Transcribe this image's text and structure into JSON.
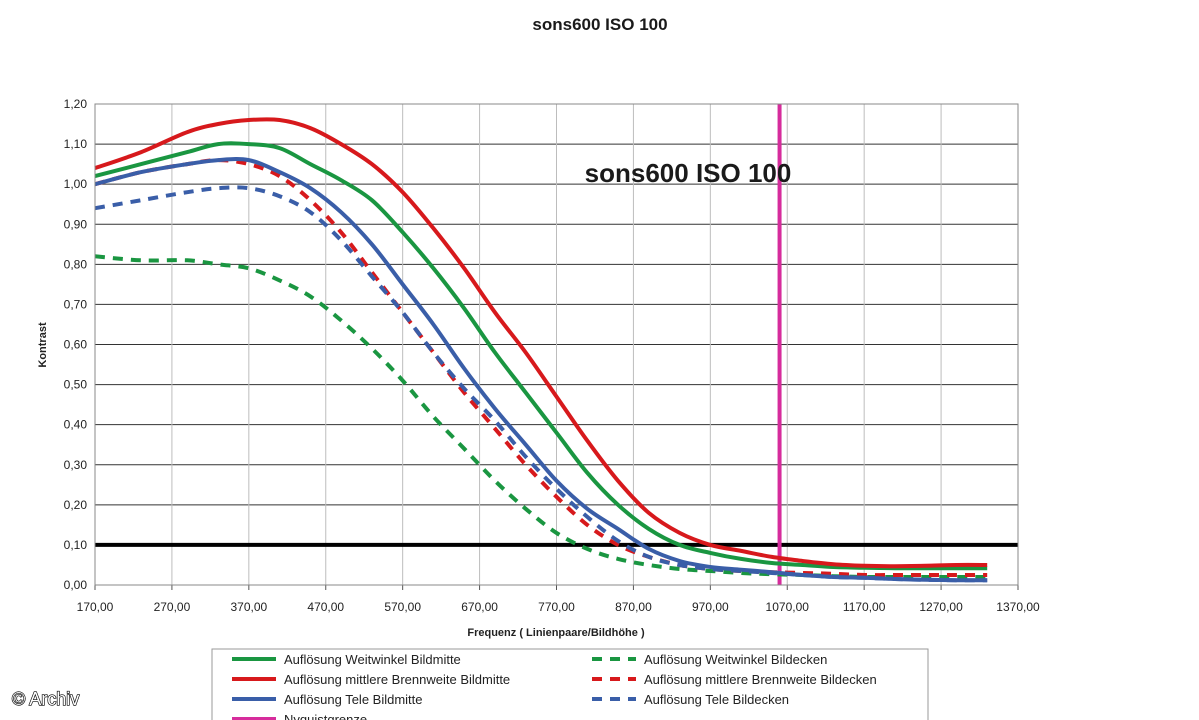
{
  "watermark": "© Archiv",
  "chart_data": {
    "type": "line",
    "title": "sons600   ISO 100",
    "inner_title": "sons600   ISO 100",
    "xlabel": "Frequenz ( Linienpaare/Bildhöhe )",
    "ylabel": "Kontrast",
    "xlim": [
      170,
      1370
    ],
    "ylim": [
      0,
      1.2
    ],
    "x_ticks": [
      "170,00",
      "270,00",
      "370,00",
      "470,00",
      "570,00",
      "670,00",
      "770,00",
      "870,00",
      "970,00",
      "1070,00",
      "1170,00",
      "1270,00",
      "1370,00"
    ],
    "y_ticks": [
      "0,00",
      "0,10",
      "0,20",
      "0,30",
      "0,40",
      "0,50",
      "0,60",
      "0,70",
      "0,80",
      "0,90",
      "1,00",
      "1,10",
      "1,20"
    ],
    "grid": true,
    "legend_position": "bottom",
    "reference_lines": [
      {
        "orientation": "horizontal",
        "y": 0.1,
        "color": "#000000"
      },
      {
        "orientation": "vertical",
        "x": 1060,
        "color": "#d62c9c",
        "name": "Nyquistgrenze"
      }
    ],
    "series": [
      {
        "name": "Auflösung Weitwinkel Bildmitte",
        "color": "#1a9641",
        "dash": false,
        "x": [
          170,
          230,
          290,
          330,
          370,
          410,
          450,
          490,
          530,
          570,
          610,
          650,
          690,
          730,
          770,
          810,
          850,
          890,
          930,
          970,
          1010,
          1050,
          1090,
          1130,
          1170,
          1210,
          1250,
          1290,
          1330
        ],
        "y": [
          1.02,
          1.05,
          1.08,
          1.1,
          1.1,
          1.09,
          1.05,
          1.01,
          0.96,
          0.88,
          0.79,
          0.69,
          0.58,
          0.48,
          0.38,
          0.28,
          0.2,
          0.14,
          0.1,
          0.08,
          0.065,
          0.055,
          0.05,
          0.045,
          0.043,
          0.042,
          0.042,
          0.042,
          0.042
        ]
      },
      {
        "name": "Auflösung mittlere Brennweite Bildmitte",
        "color": "#d7191c",
        "dash": false,
        "x": [
          170,
          230,
          290,
          330,
          370,
          410,
          450,
          490,
          530,
          570,
          610,
          650,
          690,
          730,
          770,
          810,
          850,
          890,
          930,
          970,
          1010,
          1050,
          1090,
          1130,
          1170,
          1210,
          1250,
          1290,
          1330
        ],
        "y": [
          1.04,
          1.08,
          1.13,
          1.15,
          1.16,
          1.16,
          1.14,
          1.1,
          1.05,
          0.98,
          0.89,
          0.79,
          0.68,
          0.58,
          0.47,
          0.36,
          0.26,
          0.18,
          0.13,
          0.1,
          0.085,
          0.07,
          0.06,
          0.052,
          0.048,
          0.047,
          0.048,
          0.05,
          0.05
        ]
      },
      {
        "name": "Auflösung Tele Bildmitte",
        "color": "#3a5ea8",
        "dash": false,
        "x": [
          170,
          230,
          290,
          330,
          370,
          410,
          450,
          490,
          530,
          570,
          610,
          650,
          690,
          730,
          770,
          810,
          850,
          890,
          930,
          970,
          1010,
          1050,
          1090,
          1130,
          1170,
          1210,
          1250,
          1290,
          1330
        ],
        "y": [
          1.0,
          1.03,
          1.05,
          1.06,
          1.06,
          1.03,
          0.99,
          0.93,
          0.85,
          0.75,
          0.65,
          0.54,
          0.44,
          0.35,
          0.26,
          0.19,
          0.14,
          0.09,
          0.06,
          0.045,
          0.038,
          0.032,
          0.025,
          0.02,
          0.018,
          0.015,
          0.013,
          0.012,
          0.012
        ]
      },
      {
        "name": "Auflösung Weitwinkel Bildecken",
        "color": "#1a9641",
        "dash": true,
        "x": [
          170,
          230,
          290,
          330,
          370,
          410,
          450,
          490,
          530,
          570,
          610,
          650,
          690,
          730,
          770,
          810,
          850,
          890,
          930,
          970,
          1010,
          1050,
          1090,
          1130,
          1170,
          1210,
          1250,
          1290,
          1330
        ],
        "y": [
          0.82,
          0.81,
          0.81,
          0.8,
          0.79,
          0.76,
          0.72,
          0.66,
          0.59,
          0.51,
          0.42,
          0.34,
          0.26,
          0.19,
          0.13,
          0.09,
          0.065,
          0.05,
          0.04,
          0.035,
          0.03,
          0.027,
          0.025,
          0.022,
          0.02,
          0.02,
          0.02,
          0.02,
          0.02
        ]
      },
      {
        "name": "Auflösung mittlere Brennweite Bildecken",
        "color": "#d7191c",
        "dash": true,
        "x": [
          170,
          230,
          290,
          330,
          370,
          410,
          450,
          490,
          530,
          570,
          610,
          650,
          690,
          730,
          770,
          810,
          850,
          890,
          930,
          970,
          1010,
          1050,
          1090,
          1130,
          1170,
          1210,
          1250,
          1290,
          1330
        ],
        "y": [
          1.0,
          1.03,
          1.05,
          1.06,
          1.05,
          1.02,
          0.96,
          0.88,
          0.78,
          0.68,
          0.58,
          0.48,
          0.39,
          0.3,
          0.22,
          0.15,
          0.1,
          0.07,
          0.05,
          0.04,
          0.035,
          0.032,
          0.03,
          0.028,
          0.025,
          0.025,
          0.025,
          0.025,
          0.025
        ]
      },
      {
        "name": "Auflösung Tele Bildecken",
        "color": "#3a5ea8",
        "dash": true,
        "x": [
          170,
          230,
          290,
          330,
          370,
          410,
          450,
          490,
          530,
          570,
          610,
          650,
          690,
          730,
          770,
          810,
          850,
          890,
          930,
          970,
          1010,
          1050,
          1090,
          1130,
          1170,
          1210,
          1250,
          1290,
          1330
        ],
        "y": [
          0.94,
          0.96,
          0.98,
          0.99,
          0.99,
          0.97,
          0.93,
          0.86,
          0.77,
          0.68,
          0.58,
          0.49,
          0.41,
          0.32,
          0.24,
          0.17,
          0.11,
          0.07,
          0.05,
          0.04,
          0.035,
          0.03,
          0.025,
          0.02,
          0.018,
          0.015,
          0.013,
          0.012,
          0.012
        ]
      }
    ],
    "legend": {
      "left": [
        {
          "label": "Auflösung Weitwinkel Bildmitte",
          "color": "#1a9641",
          "dash": false
        },
        {
          "label": "Auflösung mittlere Brennweite Bildmitte",
          "color": "#d7191c",
          "dash": false
        },
        {
          "label": "Auflösung Tele Bildmitte",
          "color": "#3a5ea8",
          "dash": false
        },
        {
          "label": "Nyquistgrenze",
          "color": "#d62c9c",
          "dash": false
        }
      ],
      "right": [
        {
          "label": "Auflösung Weitwinkel Bildecken",
          "color": "#1a9641",
          "dash": true
        },
        {
          "label": "Auflösung mittlere Brennweite Bildecken",
          "color": "#d7191c",
          "dash": true
        },
        {
          "label": "Auflösung Tele Bildecken",
          "color": "#3a5ea8",
          "dash": true
        }
      ]
    }
  }
}
